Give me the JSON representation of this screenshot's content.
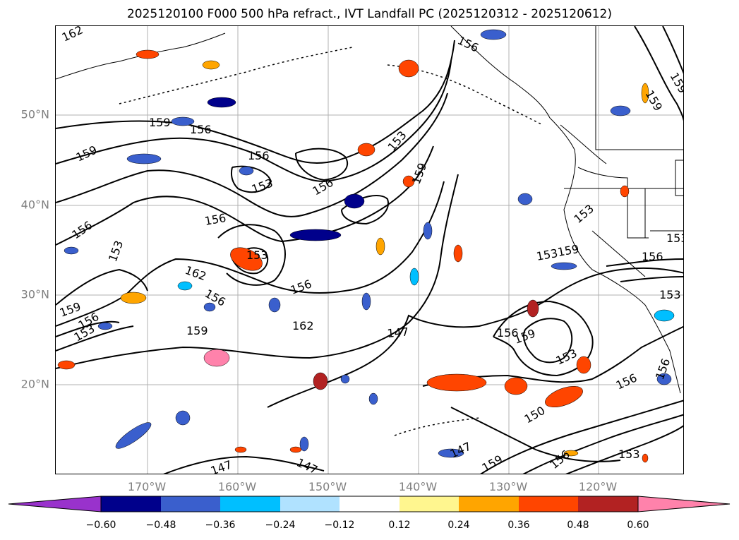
{
  "title": "2025120100 F000 500 hPa refract., IVT Landfall PC (2025120312 - 2025120612)",
  "lat_labels": [
    "50°N",
    "40°N",
    "30°N",
    "20°N"
  ],
  "lon_labels": [
    "170°W",
    "160°W",
    "150°W",
    "140°W",
    "130°W",
    "120°W"
  ],
  "colorbar": {
    "ticks": [
      "−0.60",
      "−0.48",
      "−0.36",
      "−0.24",
      "−0.12",
      "0.12",
      "0.24",
      "0.36",
      "0.48",
      "0.60"
    ],
    "colors": [
      "#9932cc",
      "#00008b",
      "#3a5fcd",
      "#00bfff",
      "#b0e2ff",
      "#ffffff",
      "#fff68f",
      "#ffa500",
      "#ff4500",
      "#b22222",
      "#ff82ab"
    ]
  },
  "contour_labels": [
    "162",
    "156",
    "159",
    "156",
    "159",
    "156",
    "153",
    "156",
    "153",
    "159",
    "156",
    "153",
    "156",
    "153",
    "153",
    "162",
    "156",
    "159",
    "162",
    "159",
    "156",
    "147",
    "156",
    "159",
    "153",
    "153",
    "159",
    "153",
    "156",
    "156",
    "153",
    "159",
    "153",
    "156",
    "159",
    "147",
    "147",
    "147",
    "156",
    "150",
    "156",
    "159",
    "153"
  ]
}
